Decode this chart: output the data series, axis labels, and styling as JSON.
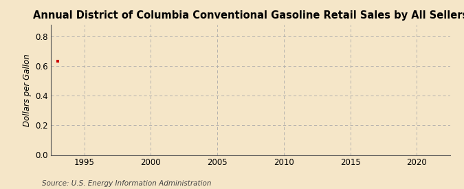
{
  "title": "Annual District of Columbia Conventional Gasoline Retail Sales by All Sellers",
  "ylabel": "Dollars per Gallon",
  "source": "Source: U.S. Energy Information Administration",
  "background_color": "#f5e6c8",
  "plot_bg_color": "#f5e6c8",
  "grid_color": "#aaaaaa",
  "data_x": [
    1993
  ],
  "data_y": [
    0.632
  ],
  "data_color": "#cc0000",
  "xlim": [
    1992.5,
    2022.5
  ],
  "ylim": [
    0.0,
    0.88
  ],
  "xticks": [
    1995,
    2000,
    2005,
    2010,
    2015,
    2020
  ],
  "yticks": [
    0.0,
    0.2,
    0.4,
    0.6,
    0.8
  ],
  "title_fontsize": 10.5,
  "label_fontsize": 8.5,
  "tick_fontsize": 8.5,
  "source_fontsize": 7.5
}
